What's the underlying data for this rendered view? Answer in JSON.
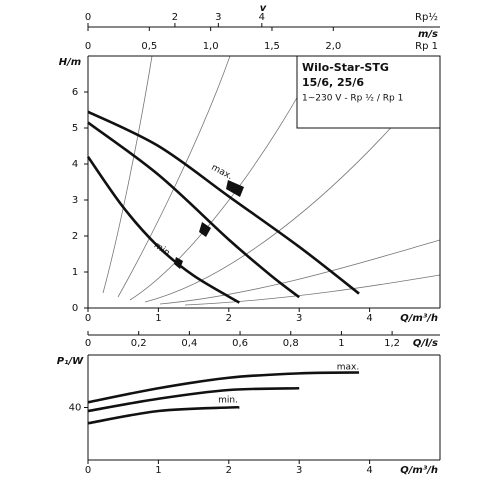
{
  "chart_data": [
    {
      "type": "line",
      "title": "Wilo-Star-STG",
      "subtitle": "15/6, 25/6",
      "annotation": "1~230 V - Rp ½ / Rp 1",
      "ylabel": "H/m",
      "xlabel": "Q/m³/h",
      "x2label": "Q/l/s",
      "v_label": "v",
      "v_unit": "m/s",
      "v_axes": [
        {
          "label": "Rp½",
          "xlim": [
            0,
            8.1
          ],
          "xticks": [
            0,
            2,
            3,
            4
          ]
        },
        {
          "label": "Rp 1",
          "xlim": [
            0,
            2.87
          ],
          "xticks": [
            0,
            {
              "value": 0.5,
              "label": "0,5"
            },
            {
              "value": 1.0,
              "label": "1,0"
            },
            {
              "value": 1.5,
              "label": "1,5"
            },
            {
              "value": 2.0,
              "label": "2,0"
            }
          ]
        }
      ],
      "xlim": [
        0,
        5
      ],
      "xticks": [
        0,
        1,
        2,
        3,
        4
      ],
      "x2lim": [
        0,
        1.389
      ],
      "x2ticks": [
        0,
        {
          "value": 0.2,
          "label": "0,2"
        },
        {
          "value": 0.4,
          "label": "0,4"
        },
        {
          "value": 0.6,
          "label": "0,6"
        },
        {
          "value": 0.8,
          "label": "0,8"
        },
        1,
        {
          "value": 1.2,
          "label": "1,2"
        }
      ],
      "ylim": [
        0,
        7
      ],
      "yticks": [
        0,
        1,
        2,
        3,
        4,
        5,
        6
      ],
      "series": [
        {
          "name": "max.",
          "color": "#111",
          "x": [
            0,
            1,
            2,
            3,
            3.85
          ],
          "values": [
            5.45,
            4.5,
            3.1,
            1.7,
            0.4
          ]
        },
        {
          "color": "#111",
          "x": [
            0,
            1,
            2,
            2.6,
            3
          ],
          "values": [
            5.15,
            3.7,
            1.9,
            0.9,
            0.3
          ]
        },
        {
          "name": "min.",
          "color": "#111",
          "x": [
            0,
            0.5,
            1,
            1.5,
            2.15
          ],
          "values": [
            4.2,
            2.8,
            1.7,
            0.9,
            0.15
          ]
        }
      ]
    },
    {
      "type": "line",
      "ylabel": "P₁/W",
      "xlabel": "Q/m³/h",
      "xlim": [
        0,
        5
      ],
      "xticks": [
        0,
        1,
        2,
        3,
        4
      ],
      "ylim": [
        10,
        70
      ],
      "yticks": [
        40
      ],
      "series": [
        {
          "name": "max.",
          "color": "#111",
          "x": [
            0,
            1,
            2,
            3,
            3.85
          ],
          "values": [
            43,
            51,
            57,
            59.5,
            60
          ]
        },
        {
          "color": "#111",
          "x": [
            0,
            1,
            2,
            3
          ],
          "values": [
            38,
            45,
            50,
            51
          ]
        },
        {
          "name": "min.",
          "color": "#111",
          "x": [
            0,
            1,
            2,
            2.15
          ],
          "values": [
            31,
            38,
            40,
            40
          ]
        }
      ]
    }
  ]
}
